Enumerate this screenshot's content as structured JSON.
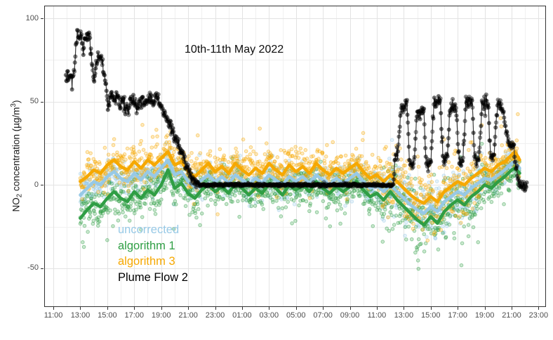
{
  "annotation": {
    "text": "10th-11th May 2022"
  },
  "y_axis_title": {
    "p1": "NO",
    "sub": "2",
    "p2": " concentration (µg/m",
    "sup": "3",
    "p3": ")"
  },
  "legend": {
    "items": [
      {
        "label": "uncorrected",
        "color": "#97c9e6"
      },
      {
        "label": "algorithm 1",
        "color": "#2f9e44"
      },
      {
        "label": "algorithm 3",
        "color": "#f6a800"
      },
      {
        "label": "Plume Flow 2",
        "color": "#000000"
      }
    ]
  },
  "chart_data": {
    "type": "scatter",
    "title": "10th-11th May 2022",
    "ylabel": "NO2 concentration (ug/m3)",
    "xlabel": "",
    "grid": {
      "major_color": "#e3e3e3",
      "minor_color": "#f0f0f0",
      "on": true
    },
    "panel": {
      "border_color": "#333333",
      "tick_color": "#333333",
      "background": "#ffffff"
    },
    "x_axis": {
      "tick_labels": [
        "11:00",
        "13:00",
        "15:00",
        "17:00",
        "19:00",
        "21:00",
        "23:00",
        "01:00",
        "03:00",
        "05:00",
        "07:00",
        "09:00",
        "11:00",
        "13:00",
        "15:00",
        "17:00",
        "19:00",
        "21:00",
        "23:00"
      ],
      "tick_t": [
        0,
        2,
        4,
        6,
        8,
        10,
        12,
        14,
        16,
        18,
        20,
        22,
        24,
        26,
        28,
        30,
        32,
        34,
        36
      ],
      "minor_t": [
        1,
        3,
        5,
        7,
        9,
        11,
        13,
        15,
        17,
        19,
        21,
        23,
        25,
        27,
        29,
        31,
        33,
        35
      ],
      "t_range": [
        -0.68,
        36.5
      ]
    },
    "y_axis": {
      "tick_labels": [
        "100",
        "50",
        "0",
        "-50"
      ],
      "tick_values": [
        100,
        50,
        0,
        -50
      ],
      "minor_values": [
        75,
        25,
        -25
      ],
      "v_range": [
        -72.8,
        107.6
      ]
    },
    "series": [
      {
        "name": "uncorrected",
        "color": "#97c9e6",
        "line_width": 4.5,
        "t0": 2,
        "dt": 0.5,
        "values": [
          -6,
          -2,
          2,
          0,
          5,
          8,
          4,
          2,
          7,
          3,
          8,
          5,
          10,
          15,
          6,
          8,
          2,
          -1,
          3,
          6,
          2,
          5,
          1,
          6,
          3,
          0,
          4,
          1,
          6,
          3,
          0,
          5,
          2,
          5,
          1,
          6,
          3,
          0,
          4,
          1,
          4,
          7,
          2,
          -2,
          0,
          -4,
          0,
          -4,
          -8,
          -12,
          -15,
          -17,
          -13,
          -16,
          -10,
          -7,
          -4,
          -6,
          -2,
          1,
          4,
          3,
          6,
          9,
          13
        ],
        "tail": [
          [
            34.25,
            14
          ],
          [
            34.6,
            10
          ]
        ],
        "scatter_sigma": 4.6,
        "skew_prob": 0.035,
        "skew_scale": -16
      },
      {
        "name": "algorithm 1",
        "color": "#2f9e44",
        "line_width": 4.5,
        "t0": 2,
        "dt": 0.5,
        "values": [
          -20,
          -15,
          -11,
          -13,
          -8,
          -4,
          -8,
          -10,
          -4,
          -8,
          -3,
          -6,
          0,
          9,
          -2,
          1,
          -5,
          -8,
          -3,
          0,
          -4,
          -1,
          -5,
          1,
          -2,
          -6,
          -2,
          -5,
          1,
          -2,
          -6,
          0,
          -3,
          0,
          -4,
          2,
          -2,
          -5,
          -1,
          -4,
          -1,
          2,
          -3,
          -7,
          -5,
          -9,
          -4,
          -9,
          -13,
          -17,
          -21,
          -24,
          -19,
          -23,
          -16,
          -12,
          -9,
          -12,
          -7,
          -4,
          0,
          -2,
          2,
          5,
          9
        ],
        "tail": [
          [
            34.25,
            10
          ],
          [
            34.6,
            7
          ]
        ],
        "scatter_sigma": 5.8,
        "skew_prob": 0.06,
        "skew_scale": -20
      },
      {
        "name": "algorithm 3",
        "color": "#f6a800",
        "line_width": 4.5,
        "t0": 2,
        "dt": 0.5,
        "values": [
          2,
          5,
          9,
          7,
          12,
          15,
          11,
          9,
          14,
          10,
          15,
          12,
          16,
          20,
          12,
          14,
          8,
          5,
          9,
          13,
          8,
          11,
          7,
          13,
          9,
          6,
          10,
          7,
          13,
          9,
          6,
          12,
          8,
          11,
          7,
          13,
          9,
          6,
          10,
          7,
          10,
          13,
          8,
          4,
          6,
          2,
          6,
          2,
          -2,
          -6,
          -9,
          -11,
          -7,
          -10,
          -4,
          -1,
          2,
          0,
          4,
          7,
          10,
          8,
          12,
          14,
          18
        ],
        "tail": [
          [
            34.25,
            20
          ],
          [
            34.6,
            15
          ]
        ],
        "scatter_sigma": 5.8,
        "skew_prob": 0.05,
        "skew_scale": 22
      },
      {
        "name": "Plume Flow 2",
        "color": "#000000",
        "line_color": "#3c3c3c",
        "line_width": 1.2,
        "points": [
          [
            0.93,
            64
          ],
          [
            1.05,
            66
          ],
          [
            1.18,
            63
          ],
          [
            1.3,
            67
          ],
          [
            1.42,
            65
          ],
          [
            1.55,
            70
          ],
          [
            1.68,
            82
          ],
          [
            1.78,
            95
          ],
          [
            1.88,
            87
          ],
          [
            2.0,
            91
          ],
          [
            2.12,
            88
          ],
          [
            2.2,
            80
          ],
          [
            2.32,
            87
          ],
          [
            2.5,
            90
          ],
          [
            2.68,
            88
          ],
          [
            2.82,
            78
          ],
          [
            2.95,
            68
          ],
          [
            3.05,
            63
          ],
          [
            3.15,
            70
          ],
          [
            3.28,
            77
          ],
          [
            3.45,
            79
          ],
          [
            3.6,
            75
          ],
          [
            3.72,
            68
          ],
          [
            3.85,
            62
          ],
          [
            3.95,
            55
          ],
          [
            4.05,
            47
          ],
          [
            4.18,
            50
          ],
          [
            4.3,
            56
          ],
          [
            4.45,
            53
          ],
          [
            4.6,
            51
          ],
          [
            4.75,
            54
          ],
          [
            4.9,
            49
          ],
          [
            5.05,
            52
          ],
          [
            5.2,
            50
          ],
          [
            5.35,
            47
          ],
          [
            5.5,
            45
          ],
          [
            5.65,
            49
          ],
          [
            5.8,
            51
          ],
          [
            5.95,
            50
          ],
          [
            6.1,
            48
          ],
          [
            6.25,
            46
          ],
          [
            6.4,
            50
          ],
          [
            6.55,
            52
          ],
          [
            6.7,
            51
          ],
          [
            6.85,
            48
          ],
          [
            7.0,
            50
          ],
          [
            7.15,
            52
          ],
          [
            7.3,
            51
          ],
          [
            7.45,
            50
          ],
          [
            7.6,
            53
          ],
          [
            7.75,
            51
          ],
          [
            7.9,
            49
          ],
          [
            8.05,
            46
          ],
          [
            8.2,
            43
          ],
          [
            8.4,
            40
          ],
          [
            8.6,
            37
          ],
          [
            8.8,
            33
          ],
          [
            9.0,
            30
          ],
          [
            9.2,
            26
          ],
          [
            9.4,
            22
          ],
          [
            9.6,
            18
          ],
          [
            9.8,
            13
          ],
          [
            10.0,
            9
          ],
          [
            10.2,
            6
          ],
          [
            10.45,
            3
          ],
          [
            10.7,
            1
          ],
          [
            10.85,
            0
          ],
          [
            25.25,
            0
          ],
          [
            25.32,
            14
          ],
          [
            25.42,
            16
          ],
          [
            25.55,
            18
          ],
          [
            25.68,
            33
          ],
          [
            25.82,
            47
          ],
          [
            25.95,
            45
          ],
          [
            26.12,
            49
          ],
          [
            26.25,
            47
          ],
          [
            26.33,
            30
          ],
          [
            26.42,
            15
          ],
          [
            26.6,
            13
          ],
          [
            26.78,
            14
          ],
          [
            26.88,
            28
          ],
          [
            27.0,
            44
          ],
          [
            27.18,
            43
          ],
          [
            27.35,
            46
          ],
          [
            27.5,
            44
          ],
          [
            27.58,
            27
          ],
          [
            27.68,
            14
          ],
          [
            27.85,
            12
          ],
          [
            28.02,
            15
          ],
          [
            28.12,
            30
          ],
          [
            28.24,
            50
          ],
          [
            28.4,
            48
          ],
          [
            28.58,
            51
          ],
          [
            28.72,
            49
          ],
          [
            28.8,
            32
          ],
          [
            28.9,
            17
          ],
          [
            29.05,
            15
          ],
          [
            29.22,
            16
          ],
          [
            29.32,
            30
          ],
          [
            29.44,
            46
          ],
          [
            29.6,
            48
          ],
          [
            29.78,
            47
          ],
          [
            29.92,
            45
          ],
          [
            30.0,
            28
          ],
          [
            30.1,
            15
          ],
          [
            30.25,
            14
          ],
          [
            30.4,
            17
          ],
          [
            30.5,
            32
          ],
          [
            30.62,
            51
          ],
          [
            30.78,
            49
          ],
          [
            30.95,
            52
          ],
          [
            31.08,
            50
          ],
          [
            31.16,
            33
          ],
          [
            31.26,
            17
          ],
          [
            31.42,
            15
          ],
          [
            31.58,
            16
          ],
          [
            31.68,
            30
          ],
          [
            31.8,
            49
          ],
          [
            31.96,
            47
          ],
          [
            32.14,
            50
          ],
          [
            32.28,
            48
          ],
          [
            32.36,
            30
          ],
          [
            32.46,
            16
          ],
          [
            32.6,
            18
          ],
          [
            32.72,
            20
          ],
          [
            32.82,
            34
          ],
          [
            32.94,
            47
          ],
          [
            33.1,
            48
          ],
          [
            33.28,
            46
          ],
          [
            33.4,
            44
          ],
          [
            33.52,
            36
          ],
          [
            33.66,
            28
          ],
          [
            33.82,
            25
          ],
          [
            33.98,
            24
          ],
          [
            34.1,
            25
          ],
          [
            34.2,
            20
          ],
          [
            34.3,
            13
          ],
          [
            34.42,
            6
          ],
          [
            34.52,
            1
          ],
          [
            34.6,
            0
          ],
          [
            34.9,
            0
          ],
          [
            35.15,
            0
          ]
        ],
        "sigma_active": 1.8,
        "sigma_flat": 0.45,
        "flat_window": [
          10.6,
          25.2
        ]
      }
    ],
    "scatter_style": {
      "step_h": 0.026,
      "black_step_h": 0.035,
      "alpha_fill": 0.25,
      "alpha_stroke": 0.45,
      "radius": 2.3,
      "black_radius": 2.7,
      "black_alpha": 0.5,
      "day2_window": [
        24.2,
        31.8
      ],
      "day2_sigma_mult": 1.75,
      "t_span_colored": [
        2.0,
        34.6
      ],
      "seed": 7
    }
  }
}
